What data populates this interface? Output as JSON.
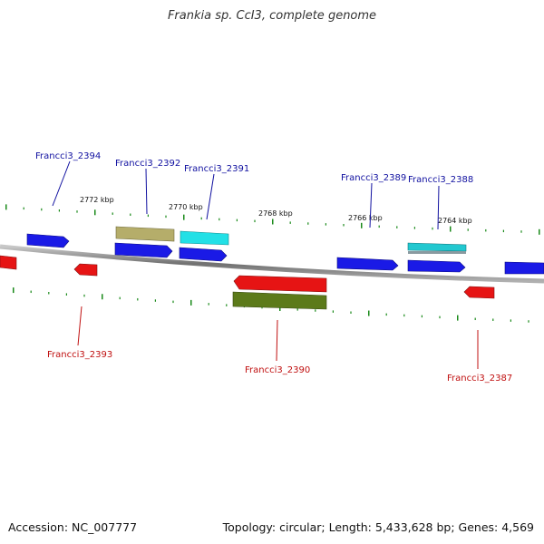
{
  "title": "Frankia sp. CcI3, complete genome",
  "footer": {
    "accession": "Accession: NC_007777",
    "summary": "Topology: circular; Length: 5,433,628 bp; Genes: 4,569"
  },
  "colors": {
    "forward_gene": "#1a1ae6",
    "reverse_gene": "#e61414",
    "olive_feature": "#5c7a1a",
    "khaki_feature": "#b5ad6a",
    "cyan_feature": "#22e0e6",
    "tick": "#1a8a1a",
    "backbone": "#808080",
    "forward_label": "#1010a0",
    "reverse_label": "#c01010"
  },
  "scale_labels": [
    "2772 kbp",
    "2770 kbp",
    "2768 kbp",
    "2766 kbp",
    "2764 kbp"
  ],
  "gene_labels": {
    "forward": [
      "Francci3_2394",
      "Francci3_2392",
      "Francci3_2391",
      "Francci3_2389",
      "Francci3_2388"
    ],
    "reverse": [
      "Francci3_2393",
      "Francci3_2390",
      "Francci3_2387"
    ]
  }
}
